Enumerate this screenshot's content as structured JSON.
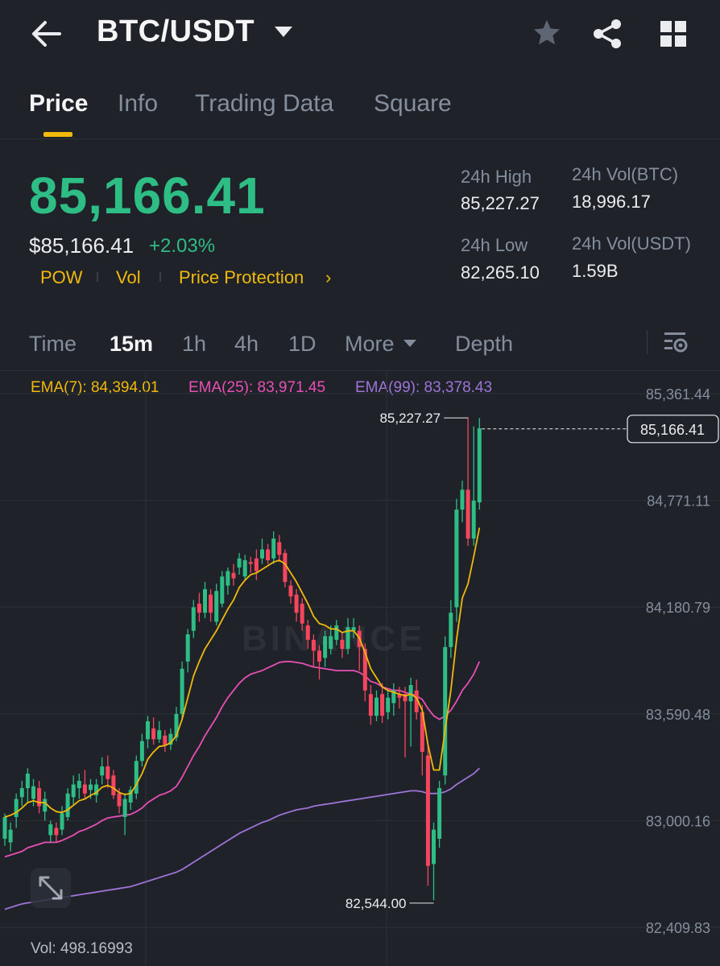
{
  "header": {
    "pair": "BTC/USDT",
    "icons": [
      "back-arrow-icon",
      "caret-down-icon",
      "star-icon",
      "share-icon",
      "grid-icon"
    ]
  },
  "tabs": [
    {
      "label": "Price",
      "active": true
    },
    {
      "label": "Info"
    },
    {
      "label": "Trading Data"
    },
    {
      "label": "Square"
    }
  ],
  "price": {
    "last": "85,166.41",
    "usd": "$85,166.41",
    "change": "+2.03%",
    "tags": [
      "POW",
      "Vol",
      "Price Protection"
    ],
    "color_up": "#2ebd85",
    "color_down": "#f6465d"
  },
  "stats": {
    "high_label": "24h High",
    "high_value": "85,227.27",
    "low_label": "24h Low",
    "low_value": "82,265.10",
    "vol_btc_label": "24h Vol(BTC)",
    "vol_btc_value": "18,996.17",
    "vol_usdt_label": "24h Vol(USDT)",
    "vol_usdt_value": "1.59B"
  },
  "intervals": {
    "items": [
      "Time",
      "15m",
      "1h",
      "4h",
      "1D",
      "More",
      "Depth"
    ],
    "active": "15m"
  },
  "ema": {
    "ema7": "EMA(7): 84,394.01",
    "ema25": "EMA(25): 83,971.45",
    "ema99": "EMA(99): 83,378.43",
    "colors": {
      "ema7": "#f0b90b",
      "ema25": "#e84fb4",
      "ema99": "#9e74d8"
    }
  },
  "chart_data": {
    "type": "candlestick",
    "y_ticks": [
      85361.44,
      84771.11,
      84180.79,
      83590.48,
      83000.16,
      82409.83
    ],
    "y_tick_labels": [
      "85,361.44",
      "84,771.11",
      "84,180.79",
      "83,590.48",
      "83,000.16",
      "82,409.83"
    ],
    "current_price": 85166.41,
    "current_label": "85,166.41",
    "high_marker": {
      "value": 85227.27,
      "label": "85,227.27"
    },
    "low_marker": {
      "value": 82544.0,
      "label": "82,544.00"
    },
    "watermark": "BINANCE",
    "candles": [
      [
        82900,
        83020,
        83040,
        82860
      ],
      [
        82880,
        82950,
        82990,
        82830
      ],
      [
        83020,
        83120,
        83150,
        82960
      ],
      [
        83130,
        83180,
        83220,
        83080
      ],
      [
        83180,
        83260,
        83290,
        83100
      ],
      [
        83120,
        83190,
        83230,
        83080
      ],
      [
        83180,
        83080,
        83220,
        83040
      ],
      [
        83050,
        83120,
        83160,
        83000
      ],
      [
        82920,
        82980,
        83000,
        82880
      ],
      [
        82960,
        82920,
        82990,
        82880
      ],
      [
        82950,
        83040,
        83080,
        82920
      ],
      [
        83020,
        83150,
        83180,
        83000
      ],
      [
        83130,
        83200,
        83250,
        83090
      ],
      [
        83180,
        83220,
        83260,
        83120
      ],
      [
        83200,
        83150,
        83280,
        83120
      ],
      [
        83170,
        83200,
        83230,
        83120
      ],
      [
        83140,
        83200,
        83230,
        83100
      ],
      [
        83250,
        83300,
        83350,
        83200
      ],
      [
        83300,
        83230,
        83360,
        83180
      ],
      [
        83250,
        83140,
        83280,
        83120
      ],
      [
        83150,
        83080,
        83180,
        83040
      ],
      [
        83020,
        83120,
        83150,
        82920
      ],
      [
        83100,
        83170,
        83190,
        83060
      ],
      [
        83150,
        83330,
        83360,
        83120
      ],
      [
        83330,
        83440,
        83480,
        83300
      ],
      [
        83450,
        83550,
        83580,
        83400
      ],
      [
        83510,
        83450,
        83570,
        83420
      ],
      [
        83450,
        83500,
        83550,
        83430
      ],
      [
        83470,
        83420,
        83500,
        83380
      ],
      [
        83420,
        83480,
        83510,
        83390
      ],
      [
        83460,
        83590,
        83630,
        83440
      ],
      [
        83590,
        83840,
        83880,
        83560
      ],
      [
        83880,
        84030,
        84060,
        83820
      ],
      [
        84050,
        84180,
        84220,
        84010
      ],
      [
        84200,
        84150,
        84260,
        84100
      ],
      [
        84150,
        84280,
        84320,
        84120
      ],
      [
        84250,
        84150,
        84280,
        84100
      ],
      [
        84100,
        84270,
        84310,
        84080
      ],
      [
        84200,
        84350,
        84380,
        84180
      ],
      [
        84300,
        84380,
        84400,
        84250
      ],
      [
        84370,
        84340,
        84420,
        84300
      ],
      [
        84400,
        84450,
        84480,
        84360
      ],
      [
        84350,
        84440,
        84470,
        84330
      ],
      [
        84430,
        84420,
        84460,
        84370
      ],
      [
        84450,
        84380,
        84500,
        84330
      ],
      [
        84450,
        84500,
        84560,
        84420
      ],
      [
        84500,
        84440,
        84530,
        84420
      ],
      [
        84450,
        84560,
        84600,
        84420
      ],
      [
        84540,
        84470,
        84580,
        84430
      ],
      [
        84480,
        84320,
        84500,
        84290
      ],
      [
        84300,
        84240,
        84330,
        84200
      ],
      [
        84250,
        84150,
        84280,
        84100
      ],
      [
        84200,
        84090,
        84230,
        84050
      ],
      [
        84080,
        84000,
        84110,
        83950
      ],
      [
        84000,
        83940,
        84030,
        83850
      ],
      [
        83940,
        83880,
        83970,
        83780
      ],
      [
        83900,
        84020,
        84050,
        83850
      ],
      [
        83950,
        84020,
        84080,
        83920
      ],
      [
        84000,
        84080,
        84110,
        83970
      ],
      [
        84000,
        83950,
        84040,
        83900
      ],
      [
        83950,
        84070,
        84120,
        83920
      ],
      [
        84050,
        84070,
        84120,
        84010
      ],
      [
        84050,
        83960,
        84080,
        83830
      ],
      [
        83950,
        83720,
        83980,
        83660
      ],
      [
        83700,
        83580,
        83750,
        83530
      ],
      [
        83580,
        83680,
        83720,
        83550
      ],
      [
        83700,
        83580,
        83760,
        83540
      ],
      [
        83600,
        83680,
        83720,
        83560
      ],
      [
        83650,
        83720,
        83760,
        83580
      ],
      [
        83700,
        83680,
        83740,
        83620
      ],
      [
        83700,
        83660,
        83740,
        83350
      ],
      [
        83660,
        83750,
        83790,
        83410
      ],
      [
        83720,
        83600,
        83780,
        83560
      ],
      [
        83600,
        83380,
        83640,
        83250
      ],
      [
        83360,
        82750,
        83420,
        82640
      ],
      [
        82760,
        82950,
        82990,
        82560
      ],
      [
        82900,
        83180,
        83220,
        82850
      ],
      [
        83250,
        83960,
        84020,
        83200
      ],
      [
        83960,
        84150,
        84220,
        83900
      ],
      [
        84180,
        84720,
        84780,
        84100
      ],
      [
        84720,
        84830,
        84880,
        84650
      ],
      [
        84830,
        84560,
        85230,
        84520
      ],
      [
        84560,
        84770,
        85180,
        84520
      ],
      [
        84760,
        85170,
        85227,
        84720
      ]
    ],
    "ema7": [
      83020,
      83030,
      83045,
      83070,
      83100,
      83110,
      83100,
      83100,
      83070,
      83050,
      83045,
      83060,
      83085,
      83110,
      83120,
      83140,
      83155,
      83185,
      83195,
      83180,
      83155,
      83145,
      83150,
      83200,
      83260,
      83340,
      83380,
      83410,
      83415,
      83430,
      83470,
      83560,
      83680,
      83800,
      83880,
      83950,
      84000,
      84050,
      84110,
      84170,
      84220,
      84290,
      84330,
      84360,
      84370,
      84390,
      84410,
      84430,
      84440,
      84420,
      84370,
      84320,
      84260,
      84200,
      84130,
      84090,
      84080,
      84060,
      84060,
      84040,
      84050,
      84050,
      84010,
      83930,
      83840,
      83790,
      83740,
      83720,
      83710,
      83700,
      83690,
      83700,
      83680,
      83610,
      83420,
      83280,
      83280,
      83500,
      83720,
      84000,
      84230,
      84310,
      84460,
      84620
    ],
    "ema25": [
      82800,
      82810,
      82820,
      82830,
      82850,
      82860,
      82870,
      82880,
      82880,
      82880,
      82890,
      82905,
      82920,
      82940,
      82950,
      82965,
      82980,
      83000,
      83015,
      83020,
      83025,
      83030,
      83035,
      83050,
      83070,
      83100,
      83120,
      83140,
      83150,
      83165,
      83190,
      83240,
      83300,
      83360,
      83410,
      83470,
      83520,
      83570,
      83630,
      83680,
      83720,
      83760,
      83790,
      83810,
      83820,
      83830,
      83845,
      83860,
      83875,
      83880,
      83880,
      83875,
      83870,
      83860,
      83850,
      83845,
      83840,
      83835,
      83830,
      83830,
      83830,
      83830,
      83820,
      83800,
      83770,
      83760,
      83740,
      83730,
      83720,
      83720,
      83710,
      83700,
      83690,
      83670,
      83620,
      83580,
      83560,
      83580,
      83610,
      83660,
      83720,
      83760,
      83810,
      83880
    ],
    "ema99": [
      82510,
      82520,
      82530,
      82540,
      82545,
      82550,
      82555,
      82560,
      82565,
      82570,
      82575,
      82580,
      82585,
      82590,
      82595,
      82600,
      82605,
      82610,
      82615,
      82620,
      82625,
      82630,
      82635,
      82645,
      82655,
      82665,
      82675,
      82685,
      82695,
      82705,
      82715,
      82730,
      82750,
      82770,
      82790,
      82810,
      82830,
      82850,
      82870,
      82890,
      82910,
      82930,
      82945,
      82960,
      82975,
      82990,
      83000,
      83015,
      83030,
      83040,
      83050,
      83060,
      83065,
      83070,
      83080,
      83085,
      83090,
      83095,
      83100,
      83105,
      83110,
      83115,
      83120,
      83125,
      83130,
      83135,
      83140,
      83145,
      83150,
      83155,
      83160,
      83165,
      83165,
      83160,
      83150,
      83150,
      83150,
      83160,
      83175,
      83200,
      83220,
      83240,
      83260,
      83290
    ],
    "volume_label": "Vol: 498.16993"
  }
}
